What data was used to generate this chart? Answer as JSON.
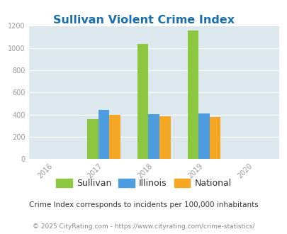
{
  "title": "Sullivan Violent Crime Index",
  "title_color": "#1a6faf",
  "years": [
    "2016",
    "2017",
    "2018",
    "2019",
    "2020"
  ],
  "bar_years": [
    2017,
    2018,
    2019
  ],
  "sullivan": [
    358,
    1035,
    1155
  ],
  "illinois": [
    440,
    405,
    410
  ],
  "national": [
    400,
    383,
    379
  ],
  "sullivan_color": "#8dc63f",
  "illinois_color": "#4d9de0",
  "national_color": "#f5a623",
  "ylim": [
    0,
    1200
  ],
  "yticks": [
    0,
    200,
    400,
    600,
    800,
    1000,
    1200
  ],
  "bg_color": "#dce8ed",
  "bar_width": 0.22,
  "legend_labels": [
    "Sullivan",
    "Illinois",
    "National"
  ],
  "footnote1": "Crime Index corresponds to incidents per 100,000 inhabitants",
  "footnote2": "© 2025 CityRating.com - https://www.cityrating.com/crime-statistics/",
  "footnote1_color": "#333333",
  "footnote2_color": "#888888",
  "tick_color": "#999999",
  "grid_color": "#ffffff"
}
